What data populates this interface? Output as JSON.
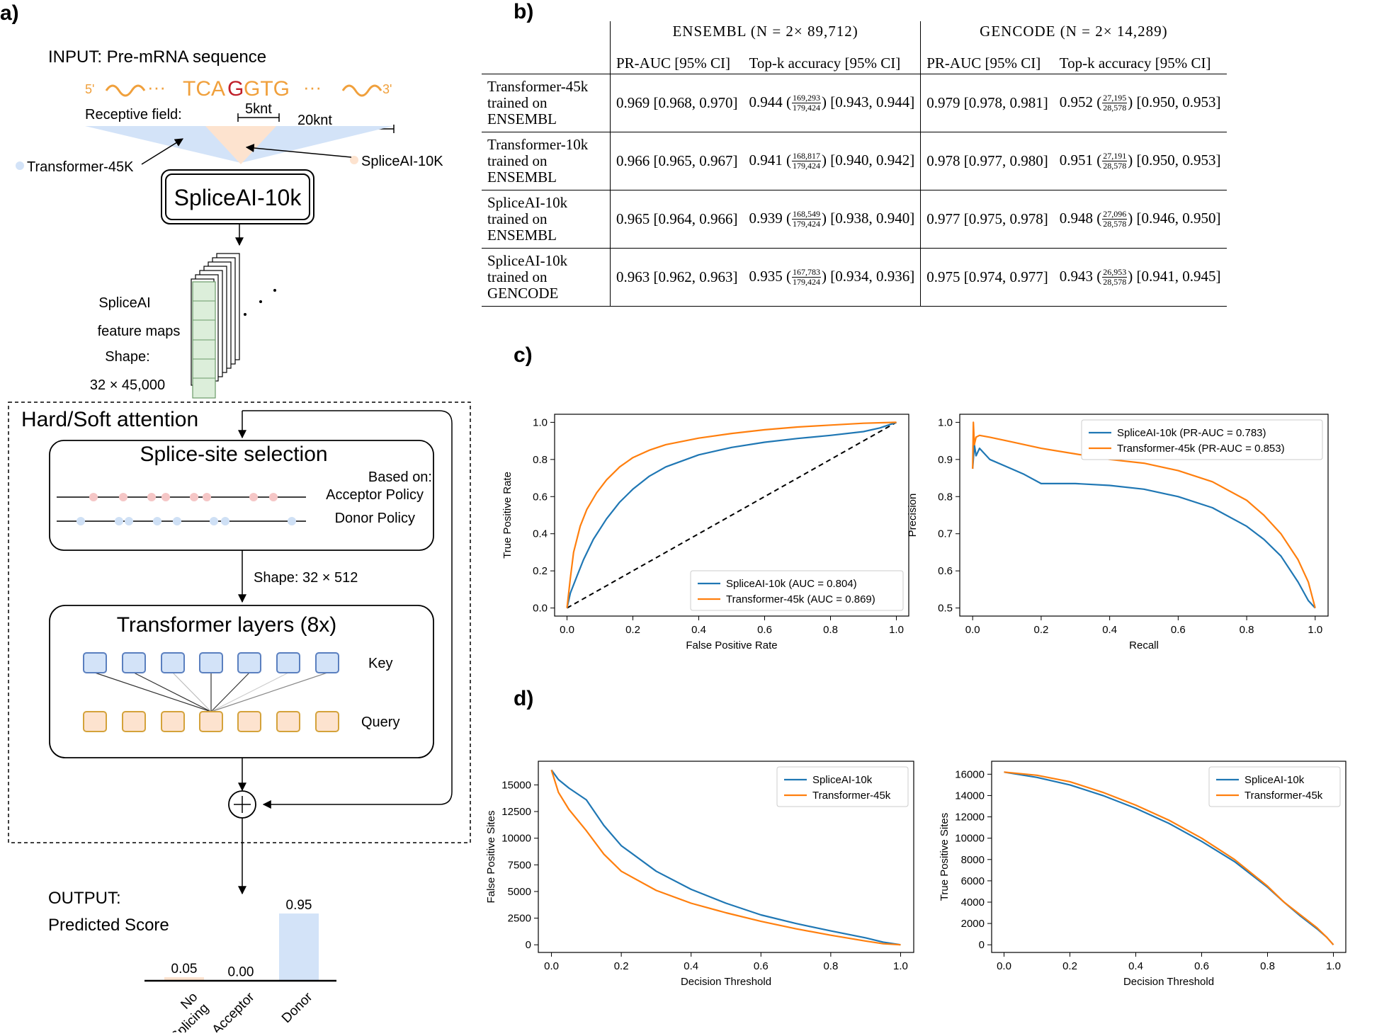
{
  "panel_labels": {
    "a": "a)",
    "b": "b)",
    "c": "c)",
    "d": "d)"
  },
  "architecture": {
    "input_title": "INPUT: Pre-mRNA sequence",
    "seq_5prime": "5'",
    "seq_3prime": "3'",
    "seq_left": "TCA",
    "seq_mid": "G",
    "seq_right": "GTG",
    "dots": "···",
    "receptive_field": "Receptive field:",
    "rf_5knt": "5knt",
    "rf_20knt": "20knt",
    "legend_transformer": "Transformer-45K",
    "legend_spliceai": "SpliceAI-10K",
    "spliceai_box": "SpliceAI-10k",
    "feature_maps": [
      "SpliceAI",
      "feature maps",
      "Shape:",
      "32 × 45,000"
    ],
    "attention_title": "Hard/Soft attention",
    "selection_title": "Splice-site selection",
    "based_on": "Based on:",
    "acceptor_policy": "Acceptor Policy",
    "donor_policy": "Donor Policy",
    "shape_512": "Shape: 32 × 512",
    "transformer_title": "Transformer layers (8x)",
    "key_label": "Key",
    "query_label": "Query",
    "output_title": "OUTPUT:",
    "output_subtitle": "Predicted Score",
    "scores": [
      {
        "label_lines": [
          "No",
          "Splicing"
        ],
        "value": 0.05,
        "value_label": "0.05",
        "color": "#fde3cf"
      },
      {
        "label_lines": [
          "Acceptor"
        ],
        "value": 0.0,
        "value_label": "0.00",
        "color": "#fde3cf"
      },
      {
        "label_lines": [
          "Donor"
        ],
        "value": 0.95,
        "value_label": "0.95",
        "color": "#d3e3f8"
      }
    ]
  },
  "table": {
    "group_ensembl": "ENSEMBL (N =  2× 89,712)",
    "group_gencode": "GENCODE (N =  2× 14,289)",
    "col_prauc": "PR-AUC [95% CI]",
    "col_topk": "Top-k accuracy [95% CI]",
    "rows": [
      {
        "model": [
          "Transformer-45k",
          "trained on",
          "ENSEMBL"
        ],
        "e_prauc": "0.969 [0.968, 0.970]",
        "e_topk": "0.944",
        "e_num": "169,293",
        "e_den": "179,424",
        "e_ci": "[0.943, 0.944]",
        "g_prauc": "0.979 [0.978, 0.981]",
        "g_topk": "0.952",
        "g_num": "27,195",
        "g_den": "28,578",
        "g_ci": "[0.950, 0.953]"
      },
      {
        "model": [
          "Transformer-10k",
          "trained on",
          "ENSEMBL"
        ],
        "e_prauc": "0.966 [0.965, 0.967]",
        "e_topk": "0.941",
        "e_num": "168,817",
        "e_den": "179,424",
        "e_ci": "[0.940, 0.942]",
        "g_prauc": "0.978 [0.977, 0.980]",
        "g_topk": "0.951",
        "g_num": "27,191",
        "g_den": "28,578",
        "g_ci": "[0.950, 0.953]"
      },
      {
        "model": [
          "SpliceAI-10k",
          "trained on",
          "ENSEMBL"
        ],
        "e_prauc": "0.965 [0.964, 0.966]",
        "e_topk": "0.939",
        "e_num": "168,549",
        "e_den": "179,424",
        "e_ci": "[0.938, 0.940]",
        "g_prauc": "0.977 [0.975, 0.978]",
        "g_topk": "0.948",
        "g_num": "27,096",
        "g_den": "28,578",
        "g_ci": "[0.946, 0.950]"
      },
      {
        "model": [
          "SpliceAI-10k",
          "trained on",
          "GENCODE"
        ],
        "e_prauc": "0.963 [0.962, 0.963]",
        "e_topk": "0.935",
        "e_num": "167,783",
        "e_den": "179,424",
        "e_ci": "[0.934, 0.936]",
        "g_prauc": "0.975 [0.974, 0.977]",
        "g_topk": "0.943",
        "g_num": "26,953",
        "g_den": "28,578",
        "g_ci": "[0.941, 0.945]"
      }
    ]
  },
  "chart_data": [
    {
      "id": "roc",
      "type": "line",
      "xlabel": "False Positive Rate",
      "ylabel": "True Positive Rate",
      "xlim": [
        0,
        1
      ],
      "ylim": [
        0,
        1
      ],
      "xticks": [
        0.0,
        0.2,
        0.4,
        0.6,
        0.8,
        1.0
      ],
      "yticks": [
        0.0,
        0.2,
        0.4,
        0.6,
        0.8,
        1.0
      ],
      "tick_decimals": 1,
      "legend_position": "lower-right",
      "diagonal": true,
      "series": [
        {
          "name": "SpliceAI-10k (AUC = 0.804)",
          "color": "#1f77b4",
          "x": [
            0,
            0.01,
            0.03,
            0.05,
            0.08,
            0.12,
            0.16,
            0.2,
            0.25,
            0.3,
            0.4,
            0.5,
            0.6,
            0.7,
            0.8,
            0.9,
            0.95,
            1.0
          ],
          "y": [
            0,
            0.08,
            0.17,
            0.26,
            0.37,
            0.48,
            0.57,
            0.64,
            0.71,
            0.76,
            0.825,
            0.865,
            0.893,
            0.913,
            0.93,
            0.95,
            0.97,
            1.0
          ]
        },
        {
          "name": "Transformer-45k (AUC = 0.869)",
          "color": "#ff7f0e",
          "x": [
            0,
            0.01,
            0.02,
            0.04,
            0.06,
            0.09,
            0.12,
            0.16,
            0.2,
            0.25,
            0.3,
            0.4,
            0.5,
            0.6,
            0.7,
            0.8,
            0.9,
            1.0
          ],
          "y": [
            0,
            0.16,
            0.3,
            0.44,
            0.53,
            0.62,
            0.69,
            0.76,
            0.81,
            0.85,
            0.88,
            0.915,
            0.94,
            0.96,
            0.975,
            0.985,
            0.995,
            1.0
          ]
        }
      ]
    },
    {
      "id": "pr",
      "type": "line",
      "xlabel": "Recall",
      "ylabel": "Precision",
      "xlim": [
        0,
        1
      ],
      "ylim": [
        0.5,
        1.0
      ],
      "xticks": [
        0.0,
        0.2,
        0.4,
        0.6,
        0.8,
        1.0
      ],
      "yticks": [
        0.5,
        0.6,
        0.7,
        0.8,
        0.9,
        1.0
      ],
      "tick_decimals": 1,
      "legend_position": "top-right",
      "diagonal": false,
      "series": [
        {
          "name": "SpliceAI-10k (PR-AUC = 0.783)",
          "color": "#1f77b4",
          "x": [
            0.0,
            0.005,
            0.01,
            0.02,
            0.05,
            0.1,
            0.15,
            0.2,
            0.3,
            0.4,
            0.5,
            0.6,
            0.7,
            0.8,
            0.85,
            0.9,
            0.95,
            0.98,
            1.0
          ],
          "y": [
            0.875,
            0.94,
            0.91,
            0.93,
            0.9,
            0.88,
            0.86,
            0.835,
            0.835,
            0.83,
            0.82,
            0.8,
            0.77,
            0.72,
            0.685,
            0.64,
            0.57,
            0.52,
            0.5
          ]
        },
        {
          "name": "Transformer-45k (PR-AUC = 0.853)",
          "color": "#ff7f0e",
          "x": [
            0.0,
            0.002,
            0.005,
            0.01,
            0.02,
            0.05,
            0.1,
            0.2,
            0.3,
            0.4,
            0.5,
            0.6,
            0.7,
            0.8,
            0.85,
            0.9,
            0.95,
            0.98,
            1.0
          ],
          "y": [
            0.875,
            1.0,
            0.94,
            0.96,
            0.965,
            0.96,
            0.95,
            0.93,
            0.915,
            0.9,
            0.89,
            0.87,
            0.84,
            0.79,
            0.75,
            0.7,
            0.63,
            0.57,
            0.5
          ]
        }
      ]
    },
    {
      "id": "fps",
      "type": "line",
      "xlabel": "Decision Threshold",
      "ylabel": "False Positive Sites",
      "xlim": [
        0,
        1
      ],
      "ylim": [
        0,
        16500
      ],
      "xticks": [
        0.0,
        0.2,
        0.4,
        0.6,
        0.8,
        1.0
      ],
      "yticks": [
        0,
        2500,
        5000,
        7500,
        10000,
        12500,
        15000
      ],
      "tick_decimals": 1,
      "legend_position": "top-right",
      "diagonal": false,
      "series": [
        {
          "name": "SpliceAI-10k",
          "color": "#1f77b4",
          "x": [
            0,
            0.02,
            0.05,
            0.1,
            0.15,
            0.2,
            0.3,
            0.4,
            0.5,
            0.6,
            0.7,
            0.8,
            0.9,
            0.95,
            1.0
          ],
          "y": [
            16400,
            15500,
            14700,
            13600,
            11200,
            9300,
            6900,
            5200,
            3900,
            2800,
            2000,
            1300,
            650,
            250,
            0
          ]
        },
        {
          "name": "Transformer-45k",
          "color": "#ff7f0e",
          "x": [
            0,
            0.02,
            0.05,
            0.1,
            0.15,
            0.2,
            0.3,
            0.4,
            0.5,
            0.6,
            0.7,
            0.8,
            0.9,
            0.95,
            1.0
          ],
          "y": [
            16400,
            14300,
            12700,
            10700,
            8500,
            6900,
            5100,
            3900,
            3000,
            2200,
            1500,
            900,
            350,
            100,
            0
          ]
        }
      ]
    },
    {
      "id": "tps",
      "type": "line",
      "xlabel": "Decision Threshold",
      "ylabel": "True Positive Sites",
      "xlim": [
        0,
        1
      ],
      "ylim": [
        0,
        16500
      ],
      "xticks": [
        0.0,
        0.2,
        0.4,
        0.6,
        0.8,
        1.0
      ],
      "yticks": [
        0,
        2000,
        4000,
        6000,
        8000,
        10000,
        12000,
        14000,
        16000
      ],
      "tick_decimals": 1,
      "legend_position": "top-right",
      "diagonal": false,
      "series": [
        {
          "name": "SpliceAI-10k",
          "color": "#1f77b4",
          "x": [
            0,
            0.1,
            0.2,
            0.3,
            0.4,
            0.5,
            0.6,
            0.7,
            0.8,
            0.85,
            0.9,
            0.95,
            0.98,
            1.0
          ],
          "y": [
            16200,
            15700,
            15000,
            14000,
            12800,
            11400,
            9700,
            7800,
            5400,
            4000,
            2700,
            1500,
            700,
            0
          ]
        },
        {
          "name": "Transformer-45k",
          "color": "#ff7f0e",
          "x": [
            0,
            0.1,
            0.2,
            0.3,
            0.4,
            0.5,
            0.6,
            0.7,
            0.8,
            0.85,
            0.9,
            0.95,
            0.98,
            1.0
          ],
          "y": [
            16200,
            15900,
            15300,
            14300,
            13100,
            11700,
            10000,
            8000,
            5500,
            4000,
            2800,
            1600,
            700,
            0
          ]
        }
      ]
    }
  ]
}
